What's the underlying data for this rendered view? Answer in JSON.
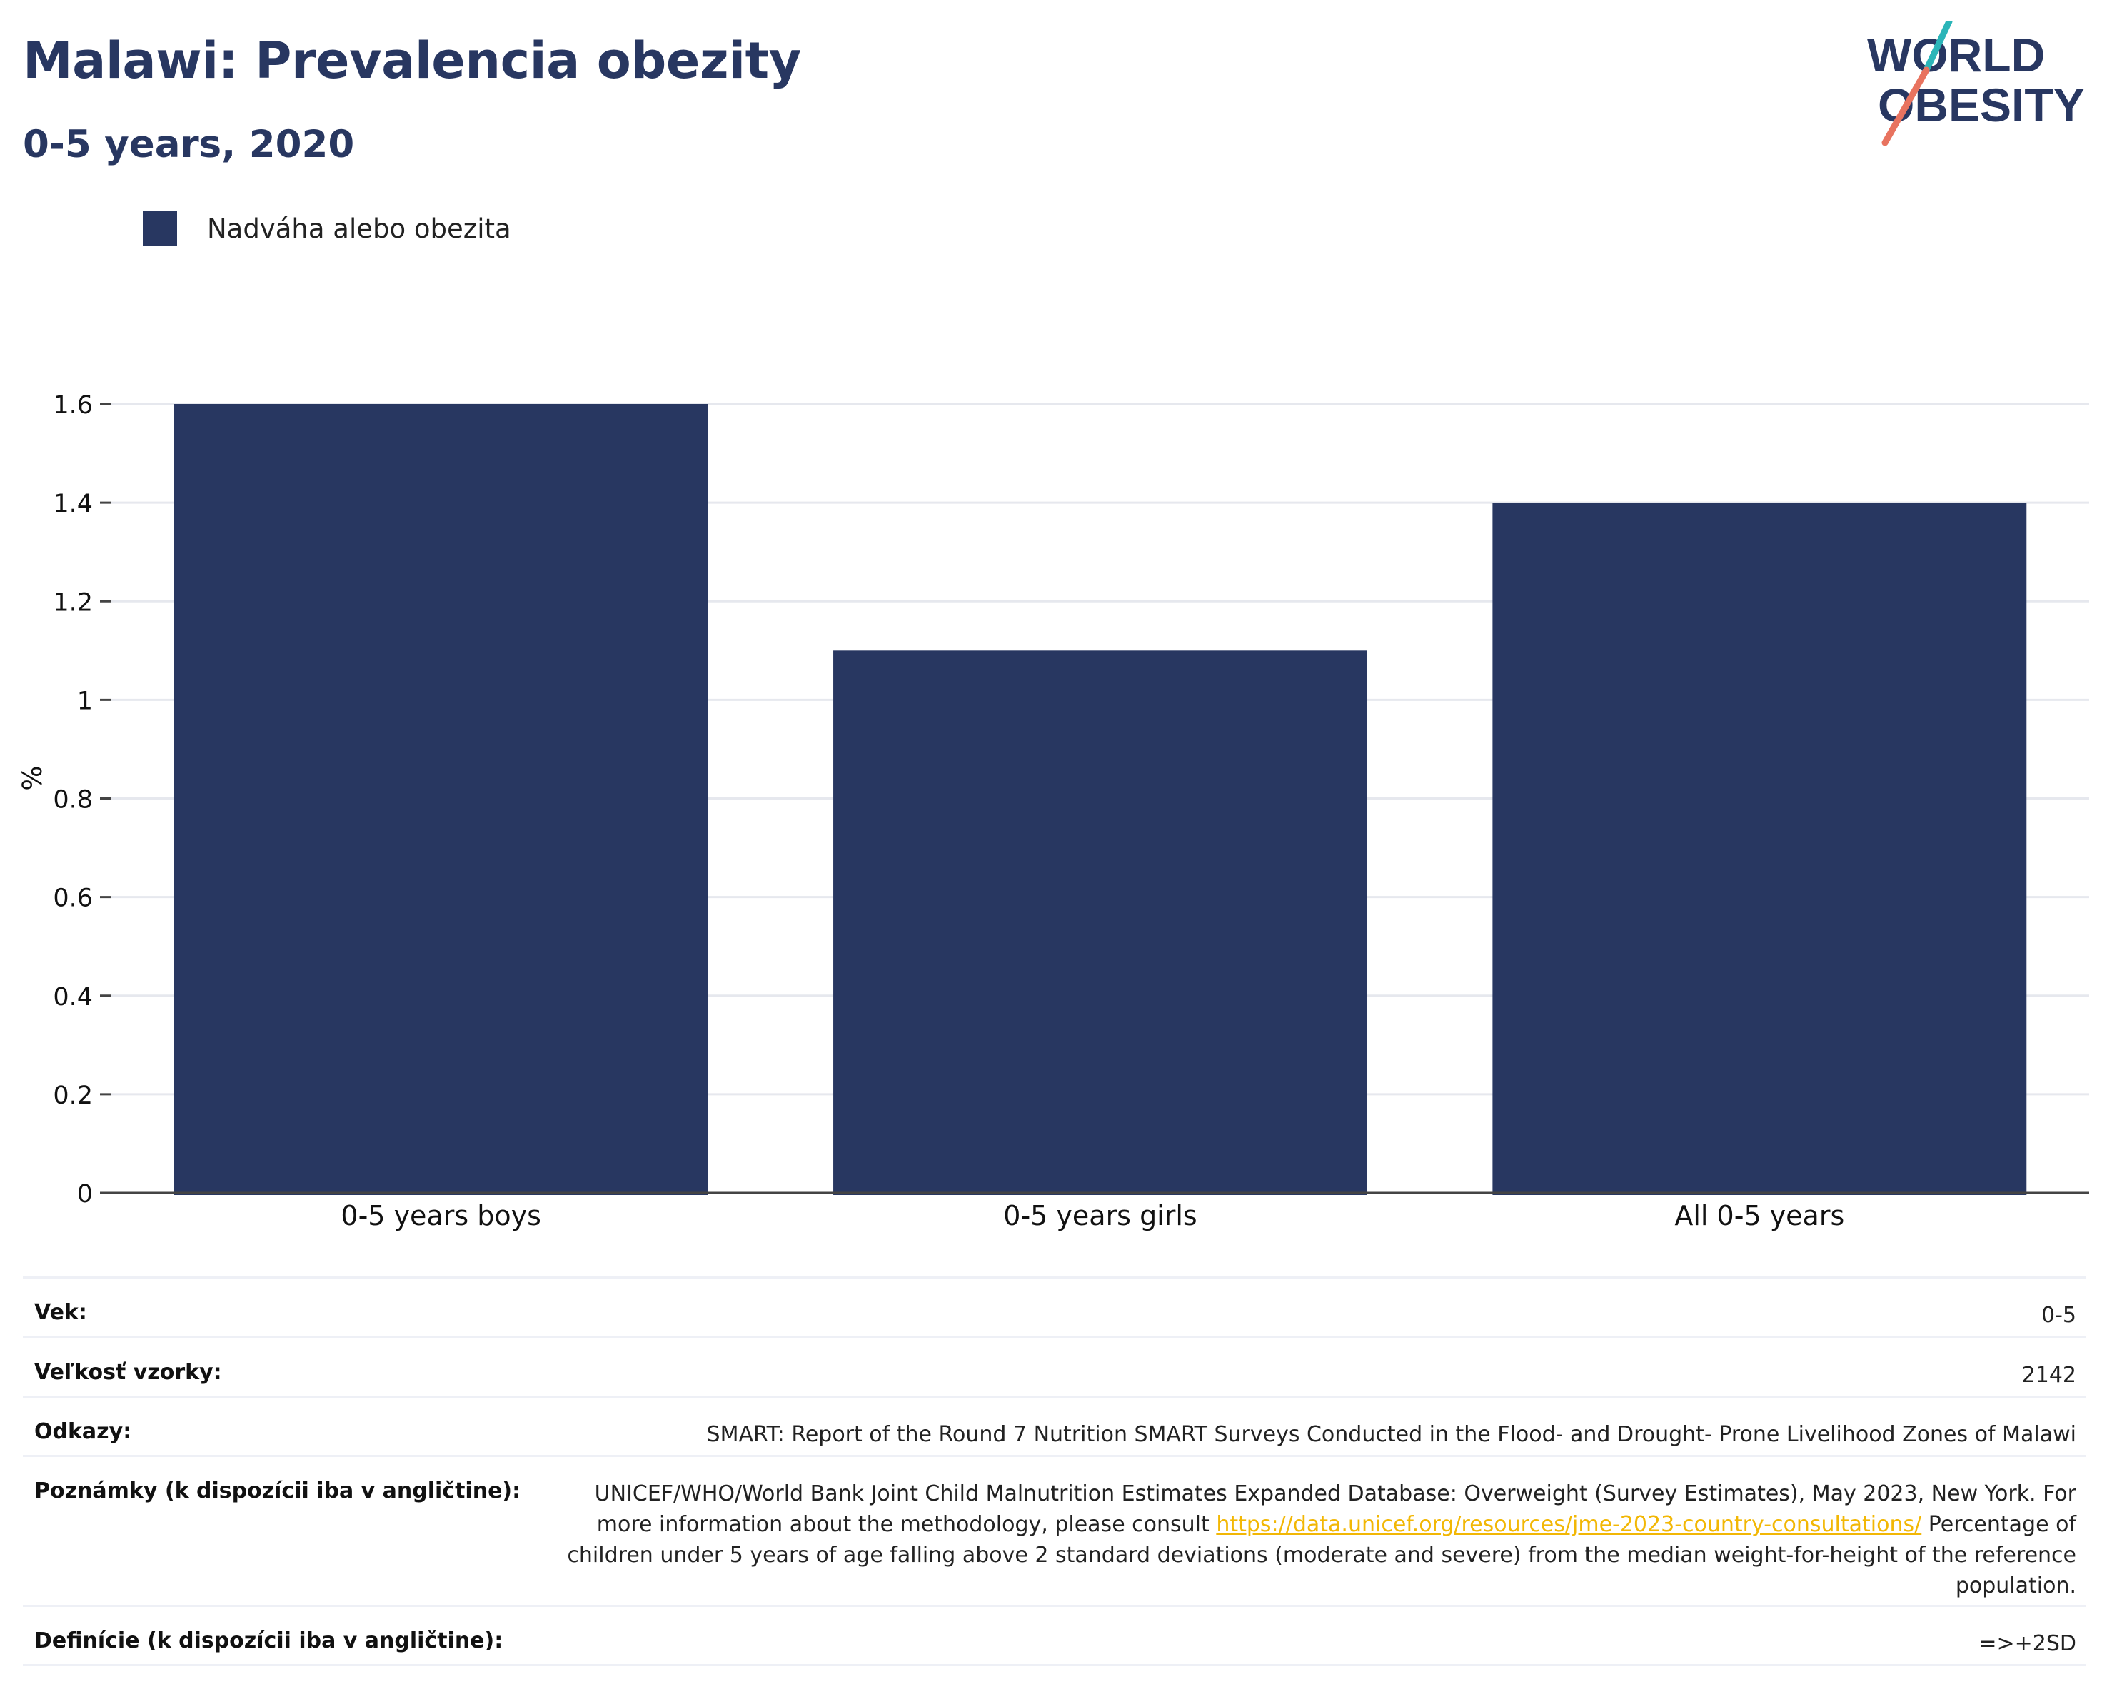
{
  "header": {
    "title": "Malawi: Prevalencia obezity",
    "subtitle": "0-5 years, 2020"
  },
  "logo": {
    "line1": "WORLD",
    "line2": "OBESITY",
    "colors": {
      "text": "#283761",
      "accent_teal": "#2bb5b8",
      "accent_coral": "#e8735f"
    }
  },
  "legend": {
    "items": [
      {
        "label": "Nadváha alebo obezita",
        "color": "#283761"
      }
    ],
    "placement": "top-left"
  },
  "chart_data": {
    "type": "bar",
    "title": "Malawi: Prevalencia obezity",
    "subtitle": "0-5 years, 2020",
    "categories": [
      "0-5 years boys",
      "0-5 years girls",
      "All 0-5 years"
    ],
    "series": [
      {
        "name": "Nadváha alebo obezita",
        "values": [
          1.6,
          1.1,
          1.4
        ],
        "color": "#283761"
      }
    ],
    "xlabel": "",
    "ylabel": "%",
    "ylim": [
      0,
      1.6
    ],
    "yticks": [
      0,
      0.2,
      0.4,
      0.6,
      0.8,
      1,
      1.2,
      1.4,
      1.6
    ],
    "ytick_labels": [
      "0",
      "0.2",
      "0.4",
      "0.6",
      "0.8",
      "1",
      "1.2",
      "1.4",
      "1.6"
    ],
    "grid": true,
    "legend": "top-left"
  },
  "metadata": {
    "age": {
      "label": "Vek:",
      "value": "0-5"
    },
    "sample": {
      "label": "Veľkosť vzorky:",
      "value": "2142"
    },
    "references": {
      "label": "Odkazy:",
      "value": "SMART: Report of the Round 7 Nutrition SMART Surveys Conducted in the Flood- and Drought- Prone Livelihood Zones of Malawi"
    },
    "notes": {
      "label": "Poznámky (k dispozícii iba v angličtine):",
      "text_before": "UNICEF/WHO/World Bank Joint Child Malnutrition Estimates Expanded Database: Overweight (Survey Estimates), May 2023, New York. For more information about the methodology, please consult ",
      "link": "https://data.unicef.org/resources/jme-2023-country-consultations/",
      "text_after": " Percentage of children under 5 years of age falling above 2 standard deviations (moderate and severe) from the median weight-for-height of the reference population."
    },
    "definitions": {
      "label": "Definície (k dispozícii iba v angličtine):",
      "value": "=>+2SD"
    }
  }
}
